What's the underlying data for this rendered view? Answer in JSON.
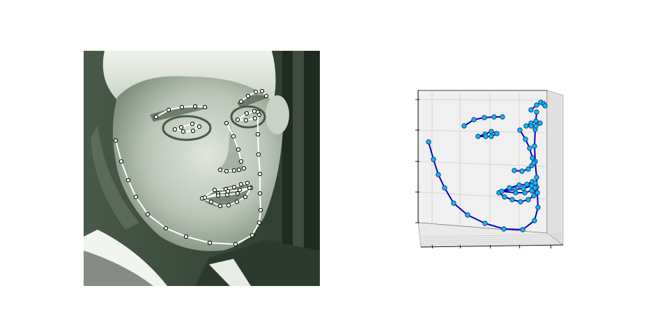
{
  "colors": {
    "photo_bg_dark": "#2c3a2c",
    "photo_skin_light": "#d9e0d7",
    "photo_hair": "#e6ebe4",
    "photo_shadow": "#5a6a5a",
    "landmark_line_2d": "#ffffff",
    "landmark_marker_2d_fill": "#ffffff",
    "landmark_marker_2d_edge": "#000000",
    "line_3d": "#0000cc",
    "marker_3d_fill": "#00bfff",
    "marker_3d_edge": "#1f3f7f",
    "pane_fill": "#f0f0f0",
    "grid": "#d0d0d0",
    "axis": "#000000"
  },
  "landmarks_2d": {
    "jaw": [
      [
        166,
        202
      ],
      [
        174,
        232
      ],
      [
        184,
        259
      ],
      [
        195,
        283
      ],
      [
        212,
        308
      ],
      [
        238,
        328
      ],
      [
        267,
        340
      ],
      [
        301,
        349
      ],
      [
        338,
        351
      ],
      [
        362,
        338
      ],
      [
        372,
        320
      ],
      [
        374,
        302
      ],
      [
        373,
        278
      ],
      [
        373,
        250
      ],
      [
        371,
        222
      ],
      [
        370,
        193
      ],
      [
        370,
        161
      ]
    ],
    "brow_right": [
      [
        224,
        168
      ],
      [
        242,
        158
      ],
      [
        261,
        154
      ],
      [
        280,
        153
      ],
      [
        294,
        154
      ]
    ],
    "brow_left": [
      [
        346,
        146
      ],
      [
        356,
        138
      ],
      [
        367,
        132
      ],
      [
        376,
        131
      ],
      [
        382,
        138
      ]
    ],
    "nose_bridge": [
      [
        325,
        177
      ],
      [
        335,
        196
      ],
      [
        342,
        215
      ],
      [
        346,
        232
      ]
    ],
    "nose_base": [
      [
        316,
        244
      ],
      [
        325,
        246
      ],
      [
        336,
        245
      ],
      [
        343,
        244
      ],
      [
        350,
        242
      ]
    ],
    "eye_right": [
      [
        251,
        186
      ],
      [
        260,
        183
      ],
      [
        276,
        178
      ],
      [
        286,
        182
      ],
      [
        277,
        188
      ],
      [
        263,
        189
      ]
    ],
    "eye_left": [
      [
        341,
        172
      ],
      [
        354,
        163
      ],
      [
        365,
        160
      ],
      [
        372,
        165
      ],
      [
        366,
        170
      ],
      [
        353,
        173
      ]
    ],
    "mouth_outer": [
      [
        290,
        285
      ],
      [
        308,
        273
      ],
      [
        324,
        272
      ],
      [
        336,
        269
      ],
      [
        346,
        265
      ],
      [
        355,
        263
      ],
      [
        360,
        270
      ],
      [
        352,
        283
      ],
      [
        340,
        290
      ],
      [
        328,
        295
      ],
      [
        316,
        296
      ],
      [
        303,
        290
      ]
    ],
    "mouth_inner": [
      [
        294,
        284
      ],
      [
        313,
        278
      ],
      [
        327,
        275
      ],
      [
        344,
        273
      ],
      [
        358,
        270
      ],
      [
        341,
        278
      ],
      [
        326,
        280
      ],
      [
        313,
        281
      ]
    ]
  },
  "landmarks_3d": {
    "jaw": [
      [
        615,
        204
      ],
      [
        622,
        229
      ],
      [
        629,
        251
      ],
      [
        638,
        270
      ],
      [
        651,
        292
      ],
      [
        671,
        309
      ],
      [
        696,
        321
      ],
      [
        723,
        329
      ],
      [
        750,
        330
      ],
      [
        767,
        317
      ],
      [
        772,
        298
      ],
      [
        771,
        277
      ],
      [
        770,
        255
      ],
      [
        768,
        232
      ],
      [
        767,
        210
      ],
      [
        768,
        186
      ],
      [
        770,
        161
      ]
    ],
    "brow_right": [
      [
        666,
        181
      ],
      [
        680,
        172
      ],
      [
        695,
        169
      ],
      [
        709,
        168
      ],
      [
        721,
        168
      ]
    ],
    "brow_left": [
      [
        762,
        158
      ],
      [
        770,
        151
      ],
      [
        776,
        147
      ],
      [
        780,
        149
      ],
      [
        782,
        152
      ]
    ],
    "nose_bridge": [
      [
        746,
        187
      ],
      [
        754,
        200
      ],
      [
        760,
        213
      ],
      [
        764,
        227
      ]
    ],
    "nose_base": [
      [
        738,
        245
      ],
      [
        749,
        246
      ],
      [
        758,
        243
      ],
      [
        763,
        238
      ],
      [
        766,
        234
      ]
    ],
    "eye_right": [
      [
        686,
        196
      ],
      [
        696,
        193
      ],
      [
        705,
        189
      ],
      [
        713,
        192
      ],
      [
        705,
        196
      ],
      [
        697,
        196
      ]
    ],
    "eye_left": [
      [
        755,
        181
      ],
      [
        762,
        177
      ],
      [
        769,
        174
      ],
      [
        775,
        177
      ],
      [
        769,
        181
      ],
      [
        762,
        181
      ]
    ],
    "mouth_outer": [
      [
        716,
        277
      ],
      [
        731,
        270
      ],
      [
        745,
        266
      ],
      [
        756,
        265
      ],
      [
        764,
        261
      ],
      [
        768,
        263
      ],
      [
        770,
        269
      ],
      [
        766,
        281
      ],
      [
        758,
        287
      ],
      [
        747,
        290
      ],
      [
        735,
        287
      ],
      [
        724,
        283
      ]
    ],
    "mouth_inner": [
      [
        720,
        275
      ],
      [
        739,
        272
      ],
      [
        751,
        271
      ],
      [
        763,
        267
      ],
      [
        768,
        270
      ],
      [
        763,
        274
      ],
      [
        753,
        277
      ],
      [
        740,
        277
      ]
    ]
  }
}
